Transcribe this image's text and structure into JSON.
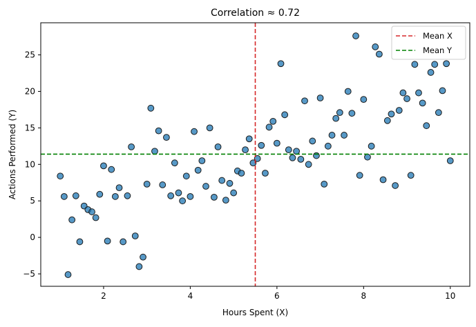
{
  "chart_data": {
    "type": "scatter",
    "title": "Correlation ≈ 0.72",
    "xlabel": "Hours Spent (X)",
    "ylabel": "Actions Performed (Y)",
    "xlim": [
      0.55,
      10.45
    ],
    "ylim": [
      -6.7,
      29.4
    ],
    "x_ticks": [
      2,
      4,
      6,
      8,
      10
    ],
    "x_tick_labels": [
      "2",
      "4",
      "6",
      "8",
      "10"
    ],
    "y_ticks": [
      -5,
      0,
      5,
      10,
      15,
      20,
      25
    ],
    "y_tick_labels": [
      "−5",
      "0",
      "5",
      "10",
      "15",
      "20",
      "25"
    ],
    "grid": false,
    "legend_position": "top-right",
    "mean_x": 5.5,
    "mean_y": 11.4,
    "series": [
      {
        "color": "#1f77b4",
        "points": [
          [
            1.0,
            8.4
          ],
          [
            1.09,
            5.6
          ],
          [
            1.18,
            -5.1
          ],
          [
            1.27,
            2.4
          ],
          [
            1.36,
            5.7
          ],
          [
            1.45,
            -0.6
          ],
          [
            1.55,
            4.3
          ],
          [
            1.64,
            3.8
          ],
          [
            1.73,
            3.5
          ],
          [
            1.82,
            2.7
          ],
          [
            1.91,
            5.9
          ],
          [
            2.0,
            9.8
          ],
          [
            2.09,
            -0.5
          ],
          [
            2.18,
            9.3
          ],
          [
            2.27,
            5.6
          ],
          [
            2.36,
            6.8
          ],
          [
            2.45,
            -0.6
          ],
          [
            2.55,
            5.7
          ],
          [
            2.64,
            12.4
          ],
          [
            2.73,
            0.2
          ],
          [
            2.82,
            -4.0
          ],
          [
            2.91,
            -2.7
          ],
          [
            3.0,
            7.3
          ],
          [
            3.09,
            17.7
          ],
          [
            3.18,
            11.8
          ],
          [
            3.27,
            14.6
          ],
          [
            3.36,
            7.2
          ],
          [
            3.45,
            13.7
          ],
          [
            3.55,
            5.7
          ],
          [
            3.64,
            10.2
          ],
          [
            3.73,
            6.1
          ],
          [
            3.82,
            5.0
          ],
          [
            3.91,
            8.4
          ],
          [
            4.0,
            5.6
          ],
          [
            4.09,
            14.5
          ],
          [
            4.18,
            9.2
          ],
          [
            4.27,
            10.5
          ],
          [
            4.36,
            7.0
          ],
          [
            4.45,
            15.0
          ],
          [
            4.55,
            5.5
          ],
          [
            4.64,
            12.4
          ],
          [
            4.73,
            7.8
          ],
          [
            4.82,
            5.1
          ],
          [
            4.91,
            7.4
          ],
          [
            5.0,
            6.1
          ],
          [
            5.09,
            9.1
          ],
          [
            5.18,
            8.8
          ],
          [
            5.27,
            12.0
          ],
          [
            5.36,
            13.5
          ],
          [
            5.45,
            10.2
          ],
          [
            5.55,
            10.8
          ],
          [
            5.64,
            12.6
          ],
          [
            5.73,
            8.8
          ],
          [
            5.82,
            15.1
          ],
          [
            5.91,
            15.9
          ],
          [
            6.0,
            12.9
          ],
          [
            6.09,
            23.8
          ],
          [
            6.18,
            16.8
          ],
          [
            6.27,
            12.0
          ],
          [
            6.36,
            10.9
          ],
          [
            6.45,
            11.8
          ],
          [
            6.55,
            10.7
          ],
          [
            6.64,
            18.7
          ],
          [
            6.73,
            10.0
          ],
          [
            6.82,
            13.2
          ],
          [
            6.91,
            11.2
          ],
          [
            7.0,
            19.1
          ],
          [
            7.09,
            7.3
          ],
          [
            7.18,
            12.5
          ],
          [
            7.27,
            14.0
          ],
          [
            7.36,
            16.3
          ],
          [
            7.45,
            17.1
          ],
          [
            7.55,
            14.0
          ],
          [
            7.64,
            20.0
          ],
          [
            7.73,
            17.0
          ],
          [
            7.82,
            27.6
          ],
          [
            7.91,
            8.5
          ],
          [
            8.0,
            18.9
          ],
          [
            8.09,
            11.0
          ],
          [
            8.18,
            12.5
          ],
          [
            8.27,
            26.1
          ],
          [
            8.36,
            25.1
          ],
          [
            8.45,
            7.9
          ],
          [
            8.55,
            16.0
          ],
          [
            8.64,
            16.9
          ],
          [
            8.73,
            7.1
          ],
          [
            8.82,
            17.4
          ],
          [
            8.91,
            19.8
          ],
          [
            9.0,
            19.0
          ],
          [
            9.09,
            8.5
          ],
          [
            9.18,
            23.7
          ],
          [
            9.27,
            19.8
          ],
          [
            9.36,
            18.4
          ],
          [
            9.45,
            15.3
          ],
          [
            9.55,
            22.6
          ],
          [
            9.64,
            23.7
          ],
          [
            9.73,
            17.1
          ],
          [
            9.82,
            20.1
          ],
          [
            9.91,
            23.8
          ],
          [
            10.0,
            10.5
          ]
        ]
      }
    ],
    "reference_lines": [
      {
        "name": "Mean X",
        "orientation": "vertical",
        "value": 5.5,
        "color": "#d62728",
        "style": "dashed"
      },
      {
        "name": "Mean Y",
        "orientation": "horizontal",
        "value": 11.4,
        "color": "#008000",
        "style": "dashed"
      }
    ]
  }
}
